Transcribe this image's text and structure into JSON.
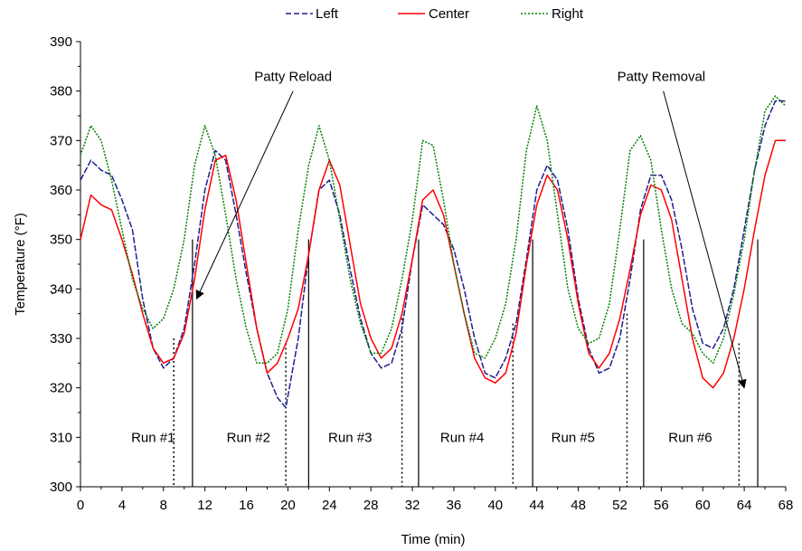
{
  "chart_data": {
    "type": "line",
    "title": "",
    "xlabel": "Time (min)",
    "ylabel": "Temperature (°F)",
    "ylabel_suffix": ".",
    "xlim": [
      0,
      68
    ],
    "ylim": [
      300,
      390
    ],
    "x_ticks": [
      0,
      4,
      8,
      12,
      16,
      20,
      24,
      28,
      32,
      36,
      40,
      44,
      48,
      52,
      56,
      60,
      64,
      68
    ],
    "y_ticks": [
      300,
      310,
      320,
      330,
      340,
      350,
      360,
      370,
      380,
      390
    ],
    "grid": false,
    "legend_position": "top",
    "series": [
      {
        "name": "Left",
        "color": "#1f1f8f",
        "style": "dashed",
        "x": [
          0,
          1,
          2,
          3,
          4,
          5,
          6,
          7,
          8,
          9,
          10,
          11,
          12,
          13,
          14,
          15,
          16,
          17,
          18,
          19,
          19.8,
          21,
          22,
          23,
          24,
          25,
          26,
          27,
          28,
          29,
          30,
          31,
          32,
          33,
          34,
          35,
          36,
          37,
          38,
          39,
          40,
          41,
          42,
          43,
          44,
          45,
          46,
          47,
          48,
          49,
          50,
          51,
          52,
          53,
          54,
          55,
          56,
          57,
          58,
          59,
          60,
          61,
          62,
          63,
          64,
          65,
          66,
          67,
          68
        ],
        "y": [
          362,
          366,
          364,
          363,
          358,
          352,
          338,
          328,
          324,
          326,
          332,
          345,
          360,
          368,
          366,
          355,
          343,
          332,
          323,
          318,
          316,
          330,
          347,
          360,
          362,
          355,
          344,
          334,
          327,
          324,
          325,
          332,
          346,
          357,
          355,
          353,
          348,
          340,
          330,
          323,
          322,
          326,
          333,
          346,
          360,
          365,
          362,
          352,
          338,
          328,
          323,
          324,
          330,
          342,
          356,
          363,
          363,
          358,
          348,
          336,
          329,
          328,
          332,
          340,
          352,
          364,
          373,
          378,
          378
        ]
      },
      {
        "name": "Center",
        "color": "#ff0000",
        "style": "solid",
        "x": [
          0,
          1,
          2,
          3,
          4,
          5,
          6,
          7,
          8,
          9,
          10,
          11,
          12,
          13,
          14,
          15,
          16,
          17,
          18,
          19,
          20,
          21,
          22,
          23,
          24,
          25,
          26,
          27,
          28,
          29,
          30,
          31,
          32,
          33,
          34,
          35,
          36,
          37,
          38,
          39,
          40,
          41,
          42,
          43,
          44,
          45,
          46,
          47,
          48,
          49,
          50,
          51,
          52,
          53,
          54,
          55,
          56,
          57,
          58,
          59,
          60,
          61,
          62,
          63,
          64,
          65,
          66,
          67,
          68
        ],
        "y": [
          350,
          359,
          357,
          356,
          350,
          343,
          335,
          328,
          325,
          326,
          331,
          342,
          356,
          366,
          367,
          358,
          345,
          332,
          323,
          325,
          330,
          336,
          347,
          360,
          366,
          361,
          349,
          337,
          330,
          326,
          328,
          335,
          346,
          358,
          360,
          355,
          345,
          335,
          326,
          322,
          321,
          323,
          331,
          345,
          357,
          363,
          360,
          350,
          337,
          327,
          324,
          327,
          334,
          344,
          355,
          361,
          360,
          354,
          342,
          330,
          322,
          320,
          323,
          330,
          340,
          352,
          363,
          370,
          370
        ]
      },
      {
        "name": "Right",
        "color": "#008000",
        "style": "dotted",
        "x": [
          0,
          1,
          2,
          3,
          4,
          5,
          6,
          7,
          8,
          9,
          10,
          11,
          12,
          13,
          14,
          15,
          16,
          17,
          18,
          19,
          20,
          21,
          22,
          23,
          24,
          25,
          26,
          27,
          28,
          29,
          30,
          31,
          32,
          33,
          34,
          35,
          36,
          37,
          38,
          39,
          40,
          41,
          42,
          43,
          44,
          45,
          46,
          47,
          48,
          49,
          50,
          51,
          52,
          53,
          54,
          55,
          56,
          57,
          58,
          59,
          60,
          61,
          62,
          63,
          64,
          65,
          66,
          67,
          68
        ],
        "y": [
          367,
          373,
          370,
          362,
          352,
          342,
          336,
          332,
          334,
          340,
          350,
          365,
          373,
          367,
          355,
          342,
          332,
          325,
          325,
          327,
          336,
          352,
          365,
          373,
          366,
          354,
          342,
          333,
          327,
          327,
          332,
          342,
          354,
          370,
          369,
          358,
          345,
          335,
          327,
          326,
          330,
          337,
          350,
          368,
          377,
          370,
          355,
          340,
          332,
          329,
          330,
          337,
          352,
          368,
          371,
          366,
          352,
          340,
          333,
          331,
          327,
          325,
          330,
          339,
          350,
          364,
          376,
          379,
          377
        ]
      }
    ],
    "run_labels": [
      {
        "label": "Run #1",
        "x": 7
      },
      {
        "label": "Run #2",
        "x": 16.2
      },
      {
        "label": "Run #3",
        "x": 26
      },
      {
        "label": "Run #4",
        "x": 36.8
      },
      {
        "label": "Run #5",
        "x": 47.5
      },
      {
        "label": "Run #6",
        "x": 58.8
      }
    ],
    "reload_markers": [
      {
        "x": 9,
        "top": 330
      },
      {
        "x": 19.8,
        "top": 329
      },
      {
        "x": 31,
        "top": 335
      },
      {
        "x": 41.7,
        "top": 333
      },
      {
        "x": 52.7,
        "top": 335
      },
      {
        "x": 63.5,
        "top": 329
      }
    ],
    "removal_markers": [
      {
        "x": 10.8,
        "top": 350
      },
      {
        "x": 22,
        "top": 350
      },
      {
        "x": 32.6,
        "top": 350
      },
      {
        "x": 43.6,
        "top": 350
      },
      {
        "x": 54.3,
        "top": 350
      },
      {
        "x": 65.3,
        "top": 350
      }
    ],
    "annotations": [
      {
        "text": "Patty Reload",
        "text_x": 20.5,
        "text_y": 383,
        "from_x": 20.5,
        "from_y": 380,
        "to_x": 11.2,
        "to_y": 338
      },
      {
        "text": "Patty Removal",
        "text_x": 56,
        "text_y": 383,
        "from_x": 56.2,
        "from_y": 380,
        "to_x": 64,
        "to_y": 320
      }
    ]
  }
}
